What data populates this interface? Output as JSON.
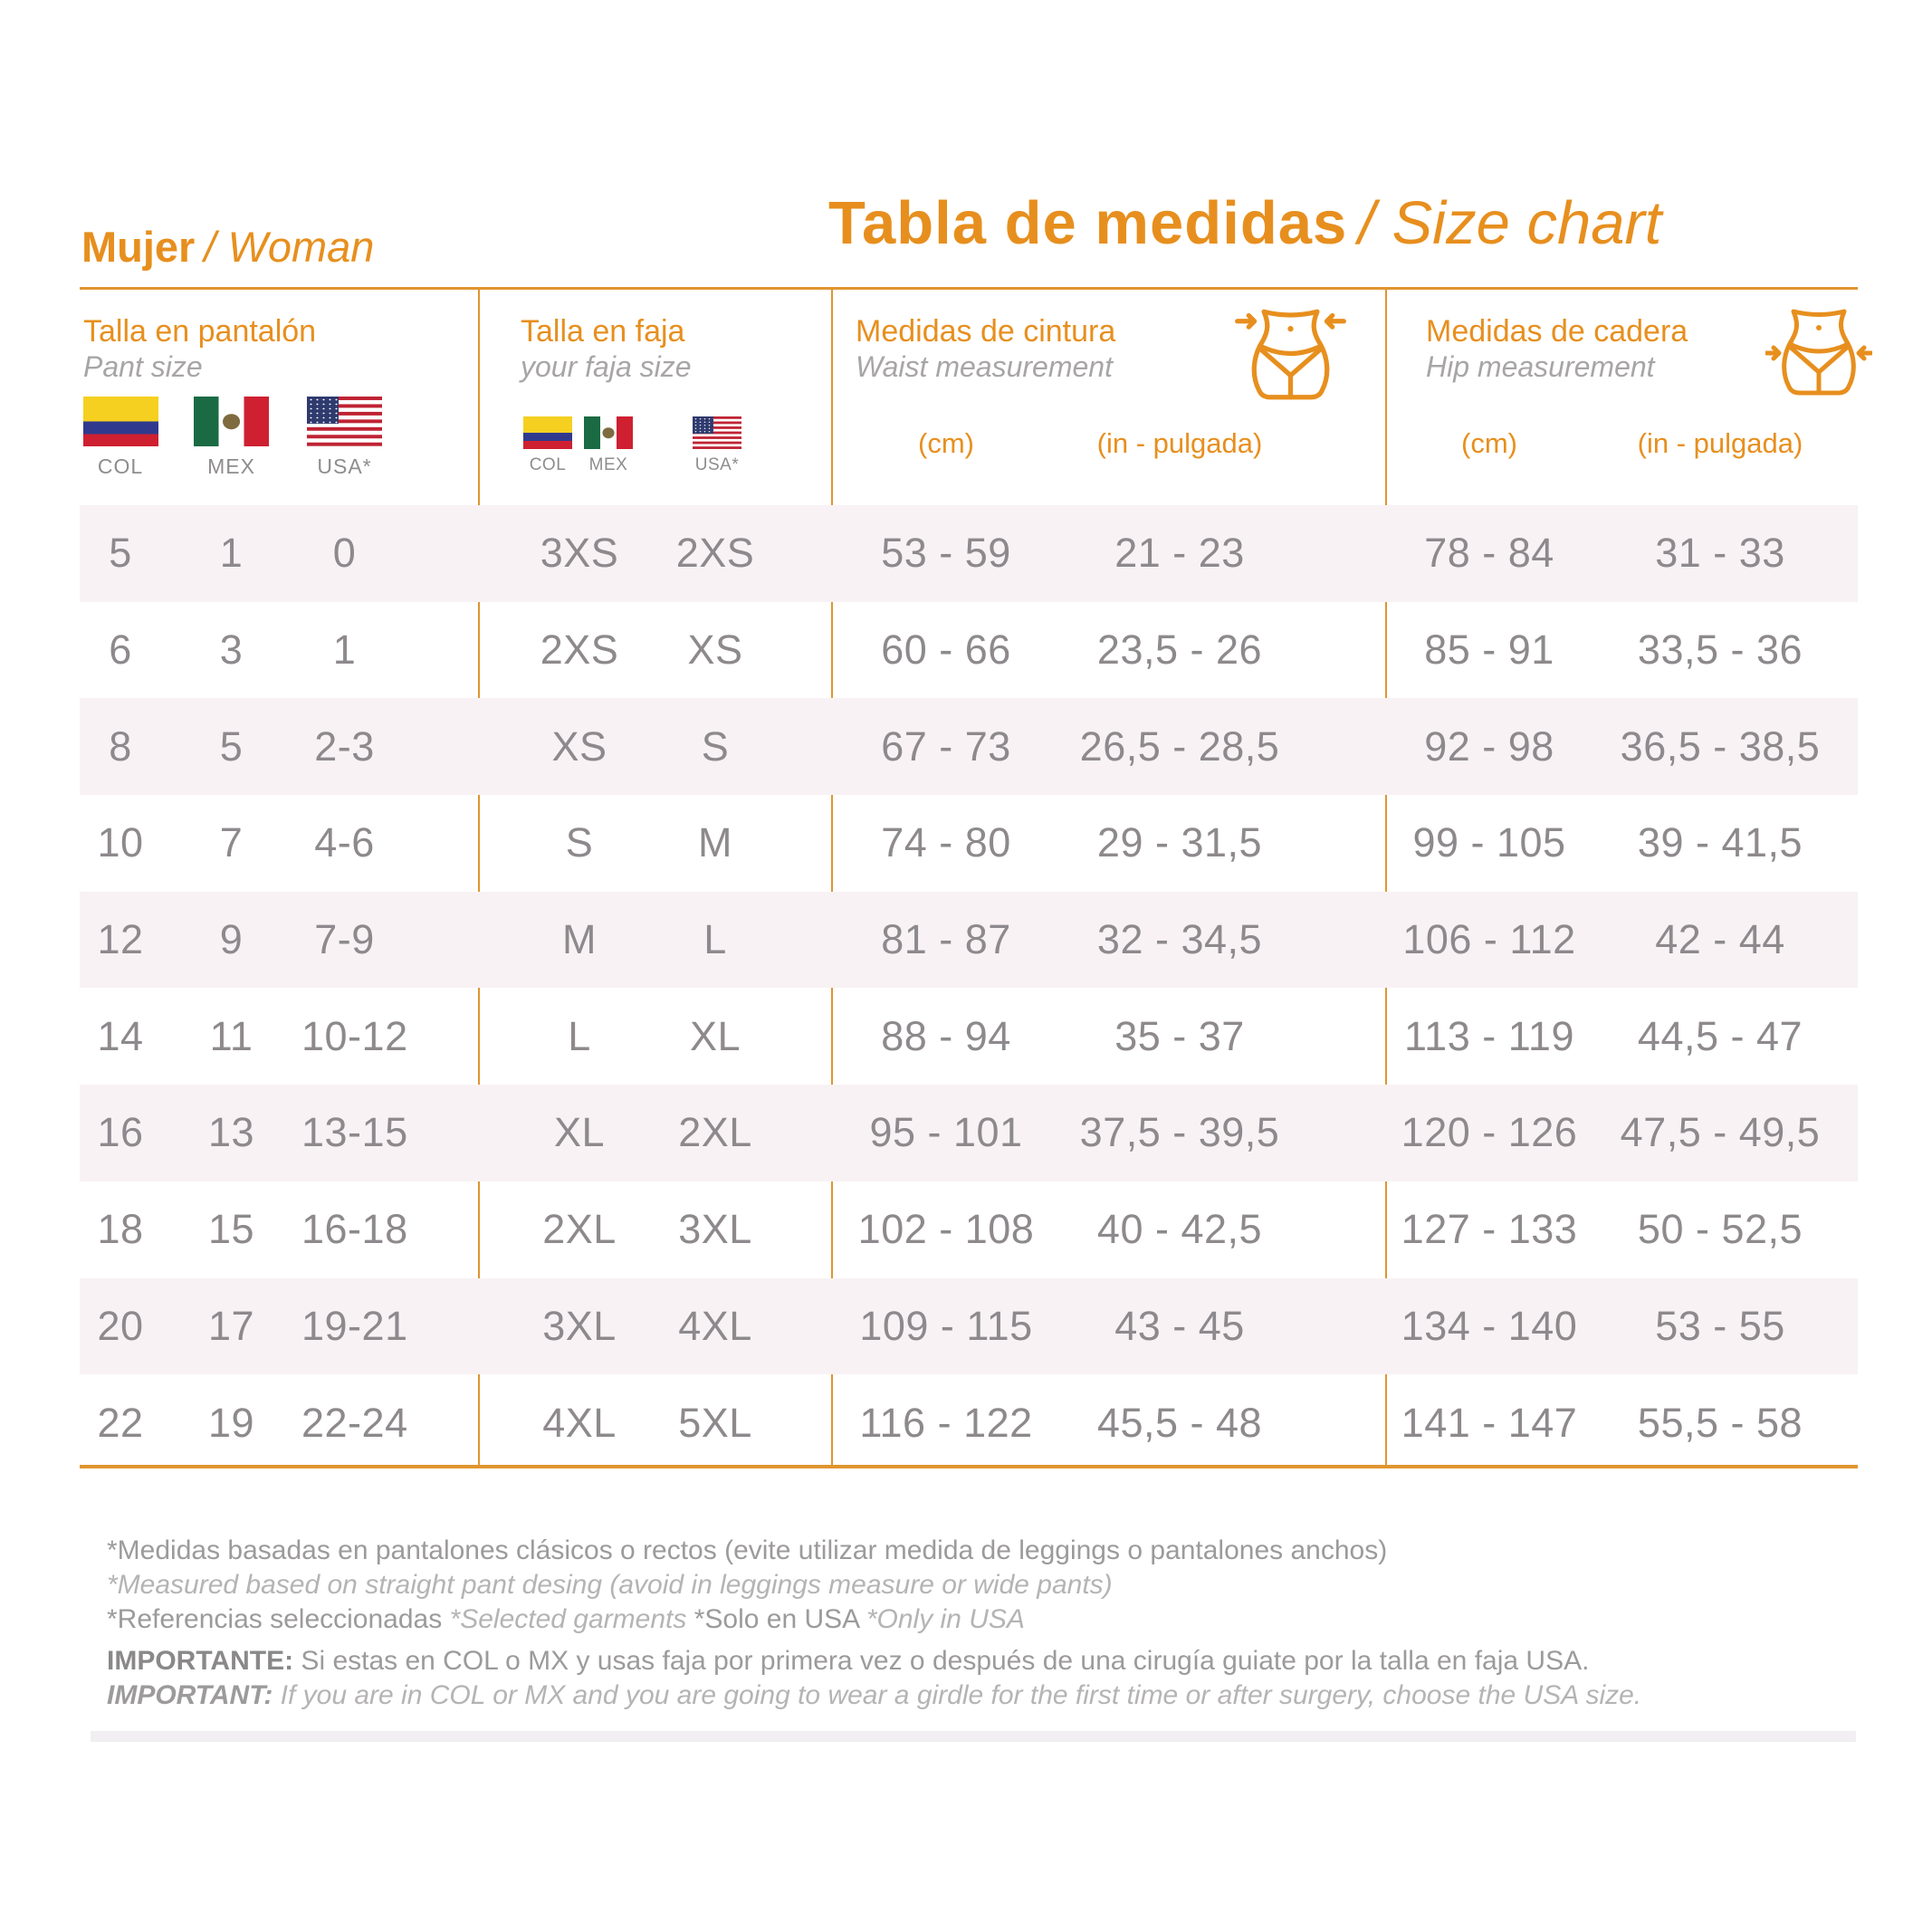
{
  "header": {
    "left": {
      "bold": "Mujer",
      "rest": "/ Woman"
    },
    "right": {
      "bold": "Tabla de medidas",
      "rest": "/ Size chart"
    }
  },
  "colors": {
    "accent_orange": "#E78F1E",
    "rule_gold": "#E0952F",
    "row_alt_pink": "#F8F2F5",
    "data_gray": "#8D898C",
    "subtitle_gray": "#A8A5A6",
    "note_gray": "#9C9A9B",
    "note_italic_gray": "#B5B3B4"
  },
  "columns": [
    {
      "id": "pant_size",
      "title_es": "Talla en pantalón",
      "title_en": "Pant size",
      "flags": [
        {
          "country": "colombia",
          "label": "COL"
        },
        {
          "country": "mexico",
          "label": "MEX"
        },
        {
          "country": "usa",
          "label": "USA*"
        }
      ]
    },
    {
      "id": "faja_size",
      "title_es": "Talla en faja",
      "title_en": "your faja size",
      "flags": [
        {
          "country": "colombia",
          "label": "COL"
        },
        {
          "country": "mexico",
          "label": "MEX"
        },
        {
          "country": "usa",
          "label": "USA*"
        }
      ]
    },
    {
      "id": "waist",
      "title_es": "Medidas de cintura",
      "title_en": "Waist measurement",
      "units": [
        "(cm)",
        "(in - pulgada)"
      ]
    },
    {
      "id": "hip",
      "title_es": "Medidas de cadera",
      "title_en": "Hip measurement",
      "units": [
        "(cm)",
        "(in - pulgada)"
      ]
    }
  ],
  "rows": [
    {
      "pant": [
        "5",
        "1",
        "0"
      ],
      "faja": [
        "3XS",
        "2XS"
      ],
      "waist_cm": "53 - 59",
      "waist_in": "21 - 23",
      "hip_cm": "78 - 84",
      "hip_in": "31 - 33"
    },
    {
      "pant": [
        "6",
        "3",
        "1"
      ],
      "faja": [
        "2XS",
        "XS"
      ],
      "waist_cm": "60 - 66",
      "waist_in": "23,5 - 26",
      "hip_cm": "85 - 91",
      "hip_in": "33,5 - 36"
    },
    {
      "pant": [
        "8",
        "5",
        "2-3"
      ],
      "faja": [
        "XS",
        "S"
      ],
      "waist_cm": "67 - 73",
      "waist_in": "26,5 - 28,5",
      "hip_cm": "92 - 98",
      "hip_in": "36,5 - 38,5"
    },
    {
      "pant": [
        "10",
        "7",
        "4-6"
      ],
      "faja": [
        "S",
        "M"
      ],
      "waist_cm": "74 - 80",
      "waist_in": "29 - 31,5",
      "hip_cm": "99 - 105",
      "hip_in": "39 - 41,5"
    },
    {
      "pant": [
        "12",
        "9",
        "7-9"
      ],
      "faja": [
        "M",
        "L"
      ],
      "waist_cm": "81 - 87",
      "waist_in": "32 - 34,5",
      "hip_cm": "106 - 112",
      "hip_in": "42 - 44"
    },
    {
      "pant": [
        "14",
        "11",
        "10-12"
      ],
      "faja": [
        "L",
        "XL"
      ],
      "waist_cm": "88 - 94",
      "waist_in": "35 - 37",
      "hip_cm": "113 - 119",
      "hip_in": "44,5 - 47"
    },
    {
      "pant": [
        "16",
        "13",
        "13-15"
      ],
      "faja": [
        "XL",
        "2XL"
      ],
      "waist_cm": "95 - 101",
      "waist_in": "37,5 - 39,5",
      "hip_cm": "120 - 126",
      "hip_in": "47,5 - 49,5"
    },
    {
      "pant": [
        "18",
        "15",
        "16-18"
      ],
      "faja": [
        "2XL",
        "3XL"
      ],
      "waist_cm": "102 - 108",
      "waist_in": "40 - 42,5",
      "hip_cm": "127 - 133",
      "hip_in": "50 - 52,5"
    },
    {
      "pant": [
        "20",
        "17",
        "19-21"
      ],
      "faja": [
        "3XL",
        "4XL"
      ],
      "waist_cm": "109 - 115",
      "waist_in": "43 - 45",
      "hip_cm": "134 - 140",
      "hip_in": "53 - 55"
    },
    {
      "pant": [
        "22",
        "19",
        "22-24"
      ],
      "faja": [
        "4XL",
        "5XL"
      ],
      "waist_cm": "116 - 122",
      "waist_in": "45,5 - 48",
      "hip_cm": "141 - 147",
      "hip_in": "55,5 - 58"
    }
  ],
  "notes": {
    "line1": "*Medidas basadas en pantalones clásicos o rectos (evite utilizar medida de leggings o pantalones anchos)",
    "line2": "*Measured based on straight pant desing (avoid in leggings measure or wide pants)",
    "line3_parts": [
      {
        "text": "*Referencias seleccionadas ",
        "style": "normal"
      },
      {
        "text": "*Selected garments ",
        "style": "italic"
      },
      {
        "text": "*Solo en USA ",
        "style": "normal"
      },
      {
        "text": "*Only in USA",
        "style": "italic"
      }
    ],
    "line4_label": "IMPORTANTE:",
    "line4_text": " Si estas en COL o MX y usas faja por primera vez o después de una cirugía guiate por la talla en faja USA.",
    "line5_label": "IMPORTANT:",
    "line5_text": " If you are in COL or MX and you are going to wear a girdle for the first time or after surgery, choose the USA size."
  }
}
